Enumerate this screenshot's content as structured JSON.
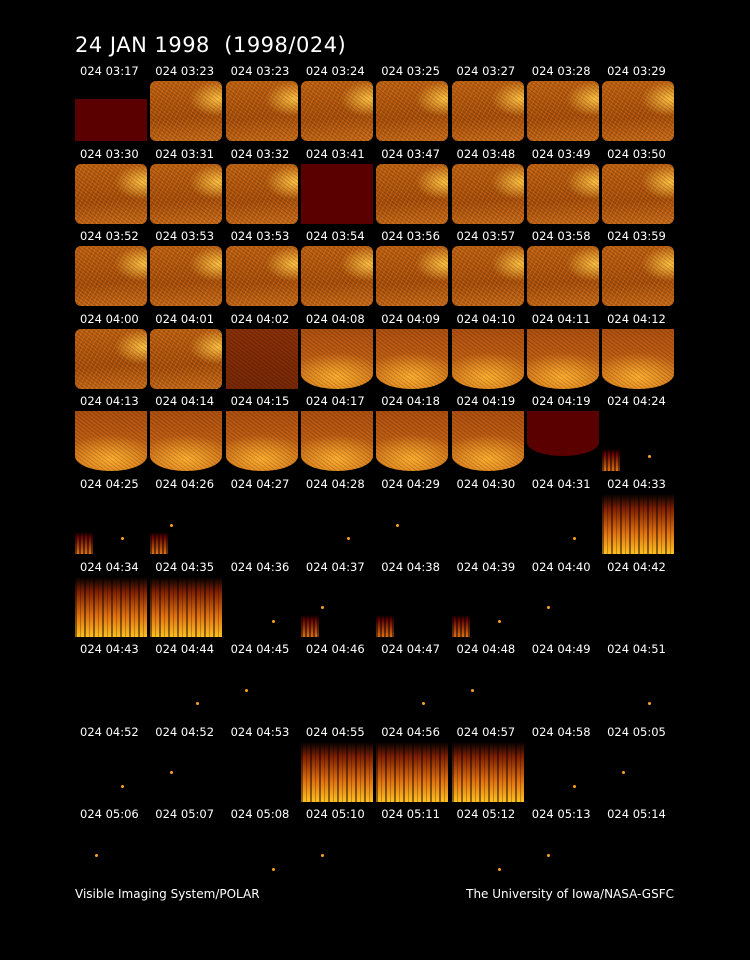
{
  "title": "24 JAN 1998  (1998/024)",
  "frames": [
    [
      "024 03:17",
      "024 03:23",
      "024 03:23",
      "024 03:24",
      "024 03:25",
      "024 03:27",
      "024 03:28",
      "024 03:29"
    ],
    [
      "024 03:30",
      "024 03:31",
      "024 03:32",
      "024 03:41",
      "024 03:47",
      "024 03:48",
      "024 03:49",
      "024 03:50"
    ],
    [
      "024 03:52",
      "024 03:53",
      "024 03:53",
      "024 03:54",
      "024 03:56",
      "024 03:57",
      "024 03:58",
      "024 03:59"
    ],
    [
      "024 04:00",
      "024 04:01",
      "024 04:02",
      "024 04:08",
      "024 04:09",
      "024 04:10",
      "024 04:11",
      "024 04:12"
    ],
    [
      "024 04:13",
      "024 04:14",
      "024 04:15",
      "024 04:17",
      "024 04:18",
      "024 04:19",
      "024 04:19",
      "024 04:24"
    ],
    [
      "024 04:25",
      "024 04:26",
      "024 04:27",
      "024 04:28",
      "024 04:29",
      "024 04:30",
      "024 04:31",
      "024 04:33"
    ],
    [
      "024 04:34",
      "024 04:35",
      "024 04:36",
      "024 04:37",
      "024 04:38",
      "024 04:39",
      "024 04:40",
      "024 04:42"
    ],
    [
      "024 04:43",
      "024 04:44",
      "024 04:45",
      "024 04:46",
      "024 04:47",
      "024 04:48",
      "024 04:49",
      "024 04:51"
    ],
    [
      "024 04:52",
      "024 04:52",
      "024 04:53",
      "024 04:55",
      "024 04:56",
      "024 04:57",
      "024 04:58",
      "024 05:05"
    ],
    [
      "024 05:06",
      "024 05:07",
      "024 05:08",
      "024 05:10",
      "024 05:11",
      "024 05:12",
      "024 05:13",
      "024 05:14"
    ]
  ],
  "footer": {
    "left": "Visible Imaging System/POLAR",
    "right": "The University of Iowa/NASA-GSFC"
  }
}
